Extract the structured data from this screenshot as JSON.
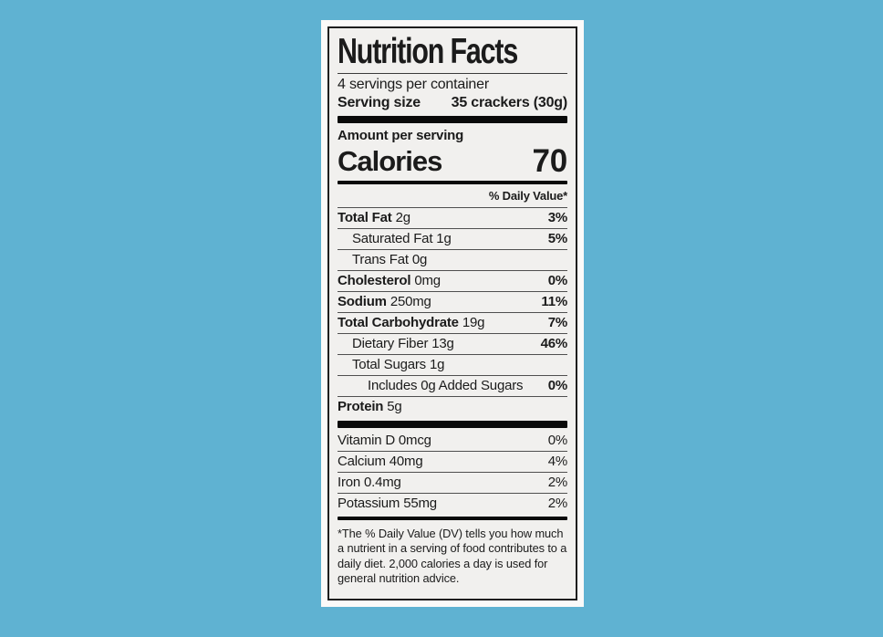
{
  "colors": {
    "background": "#5fb2d2",
    "label_background": "#f1f0ee",
    "label_margin": "#fbfaf9",
    "border": "#1e1e1e",
    "text": "#1b1b1b"
  },
  "label": {
    "title": "Nutrition Facts",
    "servings_per_container": "4 servings per container",
    "serving_size_label": "Serving size",
    "serving_size_value": "35 crackers (30g)",
    "amount_per_serving": "Amount per serving",
    "calories_label": "Calories",
    "calories_value": "70",
    "daily_value_header": "% Daily Value*",
    "nutrients": [
      {
        "name": "Total Fat",
        "amount": "2g",
        "dv": "3%",
        "name_bold": true,
        "indent": 0
      },
      {
        "name": "Saturated Fat",
        "amount": "1g",
        "dv": "5%",
        "name_bold": false,
        "indent": 1
      },
      {
        "name": "Trans Fat",
        "amount": "0g",
        "dv": "",
        "name_bold": false,
        "indent": 1
      },
      {
        "name": "Cholesterol",
        "amount": "0mg",
        "dv": "0%",
        "name_bold": true,
        "indent": 0
      },
      {
        "name": "Sodium",
        "amount": "250mg",
        "dv": "11%",
        "name_bold": true,
        "indent": 0
      },
      {
        "name": "Total Carbohydrate",
        "amount": "19g",
        "dv": "7%",
        "name_bold": true,
        "indent": 0
      },
      {
        "name": "Dietary Fiber",
        "amount": "13g",
        "dv": "46%",
        "name_bold": false,
        "indent": 1
      },
      {
        "name": "Total Sugars",
        "amount": "1g",
        "dv": "",
        "name_bold": false,
        "indent": 1
      },
      {
        "name": "Includes 0g Added Sugars",
        "amount": "",
        "dv": "0%",
        "name_bold": false,
        "indent": 2
      },
      {
        "name": "Protein",
        "amount": "5g",
        "dv": "",
        "name_bold": true,
        "indent": 0
      }
    ],
    "vitamins": [
      {
        "name": "Vitamin D 0mcg",
        "dv": "0%"
      },
      {
        "name": "Calcium 40mg",
        "dv": "4%"
      },
      {
        "name": "Iron 0.4mg",
        "dv": "2%"
      },
      {
        "name": "Potassium 55mg",
        "dv": "2%"
      }
    ],
    "footnote": "*The % Daily Value (DV) tells you how much a nutrient in a serving of food contributes to a daily diet. 2,000 calories a day is used for general nutrition advice."
  }
}
